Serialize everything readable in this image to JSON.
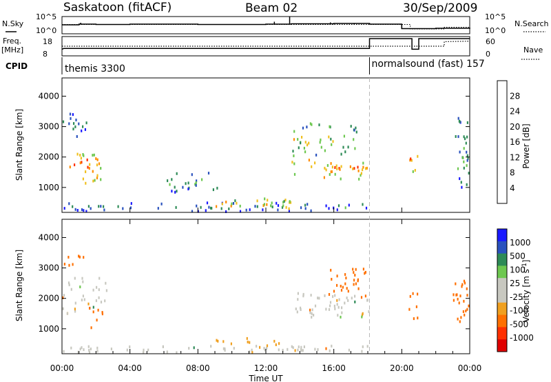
{
  "header": {
    "station": "Saskatoon (fitACF)",
    "beam": "Beam 02",
    "date": "30/Sep/2009"
  },
  "noise_panel": {
    "left_label": "N.Sky",
    "right_label": "N.Search",
    "left_ticks": [
      "10^5",
      "10^0"
    ],
    "right_ticks": [
      "10^5",
      "10^0"
    ]
  },
  "freq_panel": {
    "left_label_line1": "Freq.",
    "left_label_line2": "[MHz]",
    "right_label": "Nave",
    "left_ticks": [
      "18",
      "8"
    ],
    "right_ticks": [
      "60",
      "0"
    ]
  },
  "cpid": {
    "label": "CPID",
    "segments": [
      {
        "name": "themis 3300",
        "start_hour": 0.0,
        "end_hour": 18.1
      },
      {
        "name": "normalsound (fast) 157",
        "start_hour": 18.1,
        "end_hour": 24.0
      }
    ]
  },
  "x_axis": {
    "label": "Time UT",
    "tick_labels": [
      "00:00",
      "04:00",
      "08:00",
      "12:00",
      "16:00",
      "20:00",
      "00:00"
    ],
    "range_hours": [
      0,
      24
    ]
  },
  "power_panel": {
    "ylabel": "Slant Range [km]",
    "y_ticks": [
      "1000",
      "2000",
      "3000",
      "4000"
    ],
    "colorbar_label": "Power [dB]",
    "colorbar_ticks": [
      "4",
      "8",
      "12",
      "16",
      "20",
      "24",
      "28"
    ],
    "colors": [
      "#1a1aff",
      "#2a52be",
      "#2e8b57",
      "#6ec850",
      "#f0c020",
      "#ff8c00",
      "#ff3000",
      "#e00000"
    ]
  },
  "velocity_panel": {
    "ylabel": "Slant Range [km]",
    "y_ticks": [
      "1000",
      "2000",
      "3000",
      "4000"
    ],
    "colorbar_label": "Velocity [m s^-1]",
    "colorbar_ticks": [
      "1000",
      "500",
      "100",
      "25",
      "-25",
      "-100",
      "-500",
      "-1000"
    ],
    "colors": [
      "#1a1aff",
      "#2a52be",
      "#2e8b57",
      "#6ec850",
      "#c8c8c0",
      "#c8c8c0",
      "#f0a020",
      "#ff7000",
      "#ff3000",
      "#e00000"
    ]
  },
  "chart_data": [
    {
      "type": "line",
      "title": "Saskatoon (fitACF) Beam 02 30/Sep/2009",
      "xlabel": "Time UT",
      "series": [
        {
          "name": "N.Sky",
          "x_hours": [
            0,
            1,
            2,
            4,
            8,
            12,
            13.5,
            16,
            18.1,
            20,
            22,
            24
          ],
          "log10_values": [
            2.6,
            2.8,
            2.7,
            2.8,
            2.7,
            2.8,
            2.9,
            3.0,
            2.8,
            1.5,
            1.6,
            1.8
          ]
        },
        {
          "name": "N.Search",
          "x_hours": [
            0,
            18.1,
            20.5,
            21,
            22.5,
            24
          ],
          "log10_values": [
            2.7,
            2.7,
            1.4,
            1.4,
            1.9,
            1.6
          ]
        }
      ]
    },
    {
      "type": "line",
      "title": "Freq.",
      "ylabel": "Freq. [MHz]",
      "series": [
        {
          "name": "Freq.",
          "x_hours": [
            0,
            0.1,
            18.1,
            18.1,
            20.6,
            20.6,
            21.0,
            21.0,
            24
          ],
          "values": [
            11,
            11.5,
            11.5,
            18.0,
            18.0,
            11.0,
            11.0,
            18.0,
            18.0
          ]
        },
        {
          "name": "Nave",
          "x_hours": [
            0,
            22.5,
            22.5,
            24
          ],
          "values": [
            30,
            30,
            48,
            50
          ]
        }
      ]
    },
    {
      "type": "heatmap",
      "title": "Power [dB]",
      "xlabel": "Time UT",
      "ylabel": "Slant Range [km]",
      "xlim_hours": [
        0,
        24
      ],
      "ylim_km": [
        180,
        4600
      ],
      "color_scale": [
        0,
        32
      ],
      "blobs": [
        {
          "t0": 0.1,
          "t1": 2.2,
          "r0": 1450,
          "r1": 2150,
          "value": 24
        },
        {
          "t0": 1.2,
          "t1": 2.4,
          "r0": 1000,
          "r1": 2100,
          "value": 20
        },
        {
          "t0": 0.0,
          "t1": 1.5,
          "r0": 2600,
          "r1": 3450,
          "value": 8
        },
        {
          "t0": 0.0,
          "t1": 18.0,
          "r0": 200,
          "r1": 500,
          "value": 8
        },
        {
          "t0": 9.0,
          "t1": 13.5,
          "r0": 250,
          "r1": 650,
          "value": 18
        },
        {
          "t0": 5.5,
          "t1": 9.5,
          "r0": 800,
          "r1": 1500,
          "value": 10
        },
        {
          "t0": 13.3,
          "t1": 18.1,
          "r0": 1250,
          "r1": 1900,
          "value": 22
        },
        {
          "t0": 13.5,
          "t1": 17.5,
          "r0": 2000,
          "r1": 3100,
          "value": 16
        },
        {
          "t0": 20.4,
          "t1": 20.9,
          "r0": 1200,
          "r1": 2300,
          "value": 22
        },
        {
          "t0": 23.0,
          "t1": 24.0,
          "r0": 1000,
          "r1": 3400,
          "value": 12
        }
      ]
    },
    {
      "type": "heatmap",
      "title": "Velocity [m s^-1]",
      "xlabel": "Time UT",
      "ylabel": "Slant Range [km]",
      "xlim_hours": [
        0,
        24
      ],
      "ylim_km": [
        180,
        4600
      ],
      "blobs": [
        {
          "t0": 0.0,
          "t1": 2.6,
          "r0": 1500,
          "r1": 2700,
          "value": 0
        },
        {
          "t0": 1.3,
          "t1": 2.4,
          "r0": 1000,
          "r1": 2000,
          "value": -300
        },
        {
          "t0": 0.0,
          "t1": 1.3,
          "r0": 2800,
          "r1": 3400,
          "value": -200
        },
        {
          "t0": 0.0,
          "t1": 18.0,
          "r0": 200,
          "r1": 450,
          "value": 0
        },
        {
          "t0": 9.0,
          "t1": 13.0,
          "r0": 300,
          "r1": 700,
          "value": -60
        },
        {
          "t0": 13.4,
          "t1": 18.1,
          "r0": 1300,
          "r1": 2200,
          "value": 0
        },
        {
          "t0": 15.5,
          "t1": 18.0,
          "r0": 2000,
          "r1": 3000,
          "value": -300
        },
        {
          "t0": 20.4,
          "t1": 20.9,
          "r0": 1200,
          "r1": 2200,
          "value": -300
        },
        {
          "t0": 23.0,
          "t1": 24.0,
          "r0": 1000,
          "r1": 3200,
          "value": -200
        }
      ]
    }
  ]
}
